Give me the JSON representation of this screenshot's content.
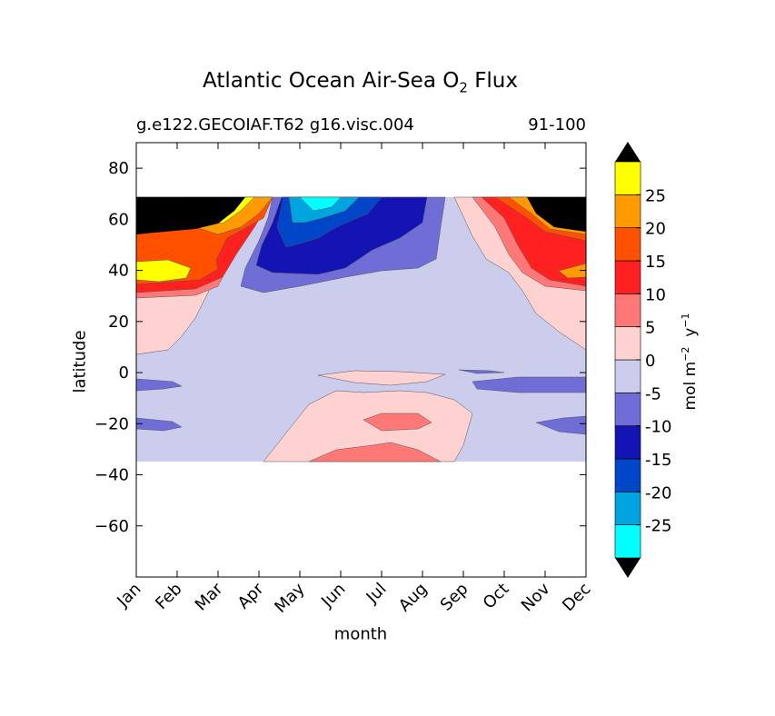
{
  "chart_data": {
    "type": "contour",
    "title": "Atlantic Ocean Air-Sea O",
    "title_sub": "2",
    "title_suffix": "Flux",
    "subtitle_left": "g.e122.GECOIAF.T62 g16.visc.004",
    "subtitle_right": "91-100",
    "xlabel": "month",
    "ylabel": "latitude",
    "x_ticks": [
      "Jan",
      "Feb",
      "Mar",
      "Apr",
      "May",
      "Jun",
      "Jul",
      "Aug",
      "Sep",
      "Oct",
      "Nov",
      "Dec"
    ],
    "ylim": [
      -80,
      90
    ],
    "y_ticks": [
      80,
      60,
      40,
      20,
      0,
      -20,
      -40,
      -60
    ],
    "y_tick_labels": [
      "80",
      "60",
      "40",
      "20",
      "0",
      "−20",
      "−40",
      "−60"
    ],
    "data_lat_range": [
      -34,
      69
    ],
    "colorbar": {
      "label": "mol m",
      "label_exp1": "−2",
      "label_mid": "y",
      "label_exp2": "−1",
      "levels": [
        -30,
        -25,
        -20,
        -15,
        -10,
        -5,
        0,
        5,
        10,
        15,
        20,
        25,
        30
      ],
      "tick_labels": [
        "-25",
        "-20",
        "-15",
        "-10",
        "-5",
        "0",
        "5",
        "10",
        "15",
        "20",
        "25"
      ],
      "colors": [
        "#00ffff",
        "#00a5e0",
        "#0046c8",
        "#1414b4",
        "#6e6ed6",
        "#cccced",
        "#ffd2d2",
        "#ff7878",
        "#ff2020",
        "#ff5000",
        "#ff9b00",
        "#ffff00"
      ],
      "over_color": "#000000",
      "under_color": "#000000"
    }
  }
}
